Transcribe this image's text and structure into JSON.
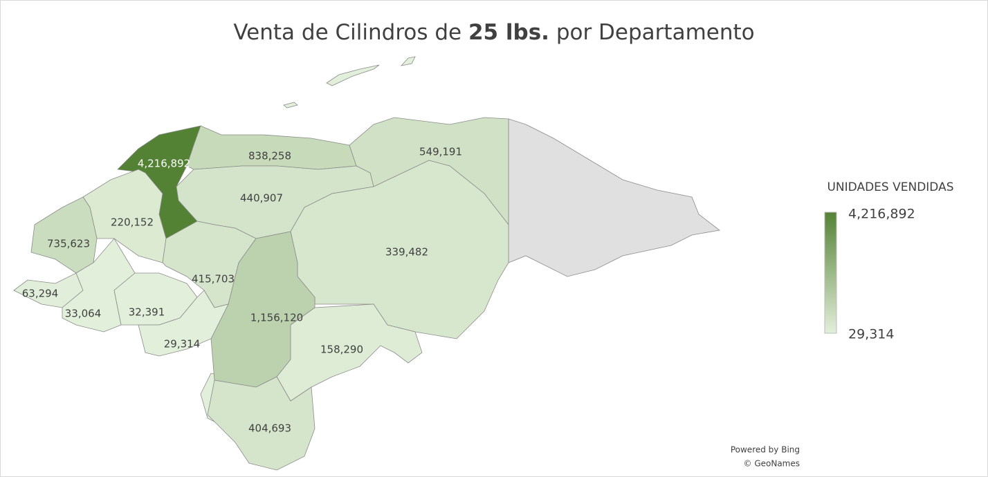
{
  "chart_data": {
    "type": "choropleth",
    "title": {
      "before": "Venta de Cilindros de",
      "bold": "25 lbs.",
      "after": "por Departamento"
    },
    "values": [
      4216892,
      838258,
      549191,
      440907,
      220152,
      735623,
      339482,
      415703,
      63294,
      33064,
      32391,
      1156120,
      29314,
      158290,
      404693
    ],
    "value_labels": [
      "4,216,892",
      "838,258",
      "549,191",
      "440,907",
      "220,152",
      "735,623",
      "339,482",
      "415,703",
      "63,294",
      "33,064",
      "32,391",
      "1,156,120",
      "29,314",
      "158,290",
      "404,693"
    ],
    "legend": {
      "title": "UNIDADES VENDIDAS",
      "max": {
        "value": 4216892,
        "label": "4,216,892"
      },
      "min": {
        "value": 29314,
        "label": "29,314"
      },
      "color_min": "#e2efda",
      "color_max": "#548235"
    },
    "attribution": [
      "Powered by Bing",
      "© GeoNames"
    ]
  }
}
